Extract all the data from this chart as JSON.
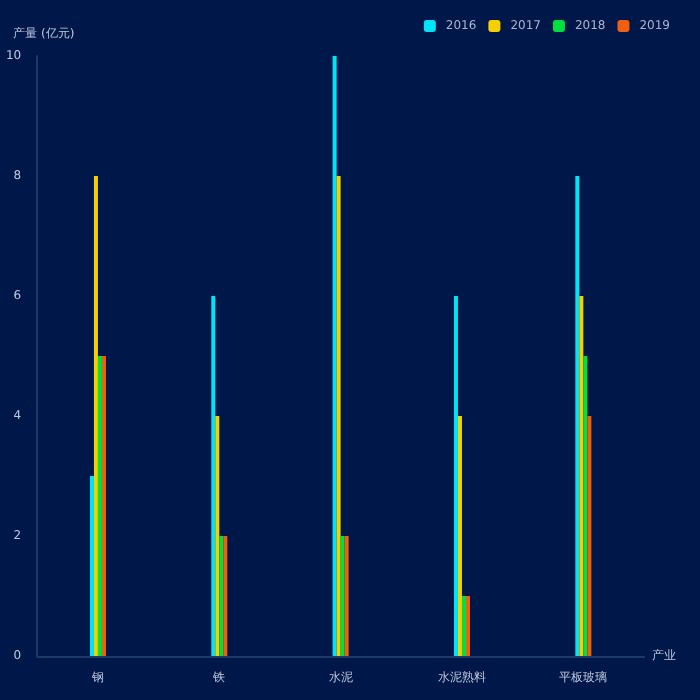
{
  "chart_data": {
    "type": "bar",
    "ylabel": "产量 (亿元)",
    "xlabel": "产业",
    "categories": [
      "钢",
      "铁",
      "水泥",
      "水泥熟料",
      "平板玻璃"
    ],
    "series": [
      {
        "name": "2016",
        "color": "#00e5f5",
        "values": [
          3,
          6,
          10,
          6,
          8
        ]
      },
      {
        "name": "2017",
        "color": "#f5d000",
        "values": [
          8,
          4,
          8,
          4,
          6
        ]
      },
      {
        "name": "2018",
        "color": "#00e040",
        "values": [
          5,
          2,
          2,
          1,
          5
        ]
      },
      {
        "name": "2019",
        "color": "#f06010",
        "values": [
          5,
          2,
          2,
          1,
          4
        ]
      }
    ],
    "ylim": [
      0,
      10
    ],
    "yticks": [
      0,
      2,
      4,
      6,
      8,
      10
    ],
    "grid": false,
    "legend": "top right"
  }
}
